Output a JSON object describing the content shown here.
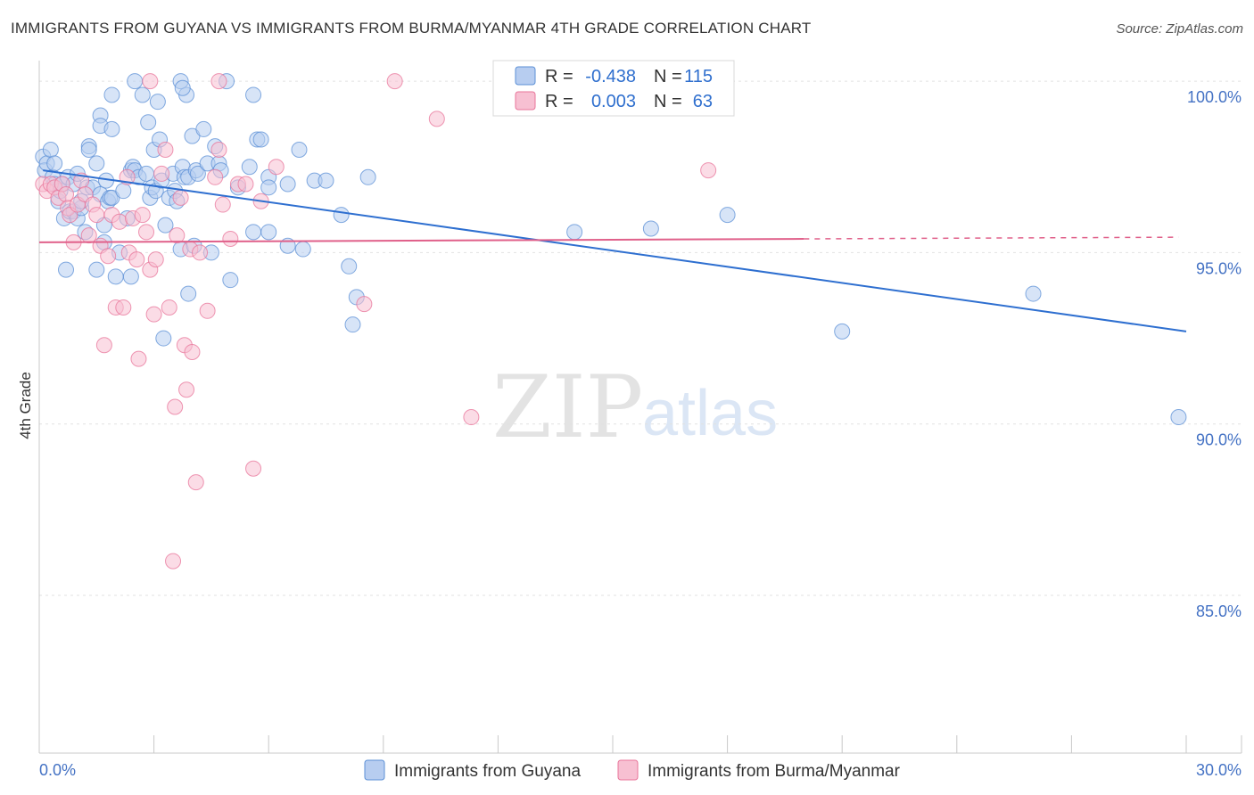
{
  "title": "IMMIGRANTS FROM GUYANA VS IMMIGRANTS FROM BURMA/MYANMAR 4TH GRADE CORRELATION CHART",
  "source": "Source: ZipAtlas.com",
  "watermark": {
    "zip": "ZIP",
    "atlas": "atlas"
  },
  "colors": {
    "guyana": "#5b8fd6",
    "guyana_fill": "#b7cdf0",
    "burma": "#e8749a",
    "burma_fill": "#f7c0d2",
    "axis_label": "#4472c4"
  },
  "stats": [
    {
      "r_label": "R =",
      "r_value": "-0.438",
      "n_label": "N =",
      "n_value": "115"
    },
    {
      "r_label": "R =",
      "r_value": "0.003",
      "n_label": "N =",
      "n_value": "63"
    }
  ],
  "legend": [
    "Immigrants from Guyana",
    "Immigrants from Burma/Myanmar"
  ],
  "chart_data": {
    "type": "scatter",
    "title": "IMMIGRANTS FROM GUYANA VS IMMIGRANTS FROM BURMA/MYANMAR 4TH GRADE CORRELATION CHART",
    "xlabel": "",
    "ylabel": "4th Grade",
    "xlim": [
      0,
      30
    ],
    "ylim": [
      80.4,
      100.6
    ],
    "x_tick_labels": [
      "0.0%",
      "30.0%"
    ],
    "y_ticks": [
      100,
      95,
      90,
      85
    ],
    "y_tick_labels": [
      "100.0%",
      "95.0%",
      "90.0%",
      "85.0%"
    ],
    "series": [
      {
        "name": "Immigrants from Guyana",
        "trend": {
          "x1": 0.1,
          "y1": 97.4,
          "x2": 30,
          "y2": 92.7
        },
        "points": [
          [
            0.1,
            97.8
          ],
          [
            0.15,
            97.4
          ],
          [
            0.2,
            97.6
          ],
          [
            0.3,
            98.0
          ],
          [
            0.35,
            97.2
          ],
          [
            0.4,
            97.6
          ],
          [
            0.4,
            97.0
          ],
          [
            0.5,
            96.5
          ],
          [
            0.55,
            96.8
          ],
          [
            0.6,
            97.0
          ],
          [
            0.65,
            96.0
          ],
          [
            0.7,
            94.5
          ],
          [
            0.75,
            97.2
          ],
          [
            0.8,
            96.2
          ],
          [
            0.9,
            96.2
          ],
          [
            0.9,
            97.0
          ],
          [
            1.0,
            96.0
          ],
          [
            1.0,
            97.3
          ],
          [
            1.1,
            96.3
          ],
          [
            1.1,
            96.5
          ],
          [
            1.2,
            95.6
          ],
          [
            1.25,
            96.9
          ],
          [
            1.3,
            98.1
          ],
          [
            1.3,
            98.0
          ],
          [
            1.4,
            96.9
          ],
          [
            1.5,
            97.6
          ],
          [
            1.5,
            94.5
          ],
          [
            1.6,
            96.7
          ],
          [
            1.6,
            99.0
          ],
          [
            1.6,
            98.7
          ],
          [
            1.7,
            95.3
          ],
          [
            1.7,
            95.8
          ],
          [
            1.75,
            97.1
          ],
          [
            1.8,
            96.5
          ],
          [
            1.85,
            96.6
          ],
          [
            1.9,
            98.6
          ],
          [
            1.9,
            99.6
          ],
          [
            1.9,
            96.6
          ],
          [
            2.0,
            94.3
          ],
          [
            2.1,
            95.0
          ],
          [
            2.2,
            96.8
          ],
          [
            2.3,
            96.0
          ],
          [
            2.4,
            97.4
          ],
          [
            2.4,
            94.3
          ],
          [
            2.45,
            97.5
          ],
          [
            2.5,
            97.4
          ],
          [
            2.5,
            100.0
          ],
          [
            2.6,
            97.2
          ],
          [
            2.7,
            99.6
          ],
          [
            2.8,
            97.3
          ],
          [
            2.85,
            98.8
          ],
          [
            2.9,
            96.6
          ],
          [
            2.95,
            96.9
          ],
          [
            3.0,
            98.0
          ],
          [
            3.05,
            96.8
          ],
          [
            3.1,
            99.4
          ],
          [
            3.15,
            98.3
          ],
          [
            3.2,
            97.1
          ],
          [
            3.25,
            92.5
          ],
          [
            3.3,
            95.8
          ],
          [
            3.4,
            96.6
          ],
          [
            3.5,
            97.3
          ],
          [
            3.55,
            96.8
          ],
          [
            3.6,
            96.5
          ],
          [
            3.7,
            95.1
          ],
          [
            3.75,
            97.5
          ],
          [
            3.8,
            97.2
          ],
          [
            3.85,
            99.6
          ],
          [
            3.9,
            97.2
          ],
          [
            3.9,
            93.8
          ],
          [
            4.0,
            98.4
          ],
          [
            4.05,
            95.2
          ],
          [
            4.1,
            97.4
          ],
          [
            4.15,
            97.3
          ],
          [
            4.3,
            98.6
          ],
          [
            4.4,
            97.6
          ],
          [
            4.5,
            95.0
          ],
          [
            4.6,
            98.1
          ],
          [
            4.7,
            97.6
          ],
          [
            4.75,
            97.4
          ],
          [
            5.0,
            94.2
          ],
          [
            5.2,
            96.9
          ],
          [
            5.5,
            97.5
          ],
          [
            5.6,
            99.6
          ],
          [
            5.6,
            95.6
          ],
          [
            5.7,
            98.3
          ],
          [
            5.8,
            98.3
          ],
          [
            6.0,
            95.6
          ],
          [
            6.0,
            97.2
          ],
          [
            6.5,
            97.0
          ],
          [
            6.5,
            95.2
          ],
          [
            6.8,
            98.0
          ],
          [
            6.9,
            95.1
          ],
          [
            7.2,
            97.1
          ],
          [
            7.5,
            97.1
          ],
          [
            7.9,
            96.1
          ],
          [
            8.1,
            94.6
          ],
          [
            8.2,
            92.9
          ],
          [
            8.3,
            93.7
          ],
          [
            8.6,
            97.2
          ],
          [
            3.7,
            100.0
          ],
          [
            3.75,
            99.8
          ],
          [
            4.9,
            100.0
          ],
          [
            6.0,
            96.9
          ],
          [
            14.0,
            95.6
          ],
          [
            16.0,
            95.7
          ],
          [
            18.0,
            96.1
          ],
          [
            21.0,
            92.7
          ],
          [
            26.0,
            93.8
          ],
          [
            29.8,
            90.2
          ]
        ]
      },
      {
        "name": "Immigrants from Burma/Myanmar",
        "trend": {
          "x1": 0,
          "y1": 95.3,
          "x2": 20.0,
          "y2": 95.4,
          "dash_to": 29.8
        },
        "points": [
          [
            0.1,
            97.0
          ],
          [
            0.2,
            96.8
          ],
          [
            0.3,
            97.0
          ],
          [
            0.4,
            96.9
          ],
          [
            0.5,
            96.6
          ],
          [
            0.6,
            97.0
          ],
          [
            0.7,
            96.7
          ],
          [
            0.75,
            96.3
          ],
          [
            0.8,
            96.1
          ],
          [
            0.9,
            95.3
          ],
          [
            1.0,
            96.4
          ],
          [
            1.1,
            97.1
          ],
          [
            1.2,
            96.7
          ],
          [
            1.3,
            95.5
          ],
          [
            1.4,
            96.4
          ],
          [
            1.5,
            96.1
          ],
          [
            1.6,
            95.2
          ],
          [
            1.7,
            92.3
          ],
          [
            1.8,
            94.9
          ],
          [
            1.9,
            96.1
          ],
          [
            2.0,
            93.4
          ],
          [
            2.1,
            95.9
          ],
          [
            2.2,
            93.4
          ],
          [
            2.3,
            97.2
          ],
          [
            2.35,
            95.0
          ],
          [
            2.45,
            96.0
          ],
          [
            2.55,
            94.8
          ],
          [
            2.6,
            91.9
          ],
          [
            2.7,
            96.1
          ],
          [
            2.8,
            95.6
          ],
          [
            2.9,
            94.5
          ],
          [
            3.0,
            93.2
          ],
          [
            3.05,
            94.8
          ],
          [
            3.2,
            97.3
          ],
          [
            3.3,
            98.0
          ],
          [
            3.4,
            93.4
          ],
          [
            3.55,
            90.5
          ],
          [
            3.6,
            95.5
          ],
          [
            3.7,
            96.6
          ],
          [
            3.8,
            92.3
          ],
          [
            3.85,
            91.0
          ],
          [
            3.95,
            95.1
          ],
          [
            4.0,
            92.1
          ],
          [
            4.1,
            88.3
          ],
          [
            4.2,
            95.0
          ],
          [
            4.4,
            93.3
          ],
          [
            4.6,
            97.2
          ],
          [
            4.7,
            98.0
          ],
          [
            4.8,
            96.4
          ],
          [
            5.0,
            95.4
          ],
          [
            5.2,
            97.0
          ],
          [
            5.4,
            97.0
          ],
          [
            5.6,
            88.7
          ],
          [
            5.8,
            96.5
          ],
          [
            6.2,
            97.5
          ],
          [
            8.5,
            93.5
          ],
          [
            9.3,
            100.0
          ],
          [
            10.4,
            98.9
          ],
          [
            11.3,
            90.2
          ],
          [
            17.5,
            97.4
          ],
          [
            3.5,
            86.0
          ],
          [
            2.9,
            100.0
          ],
          [
            4.7,
            100.0
          ]
        ]
      }
    ]
  }
}
